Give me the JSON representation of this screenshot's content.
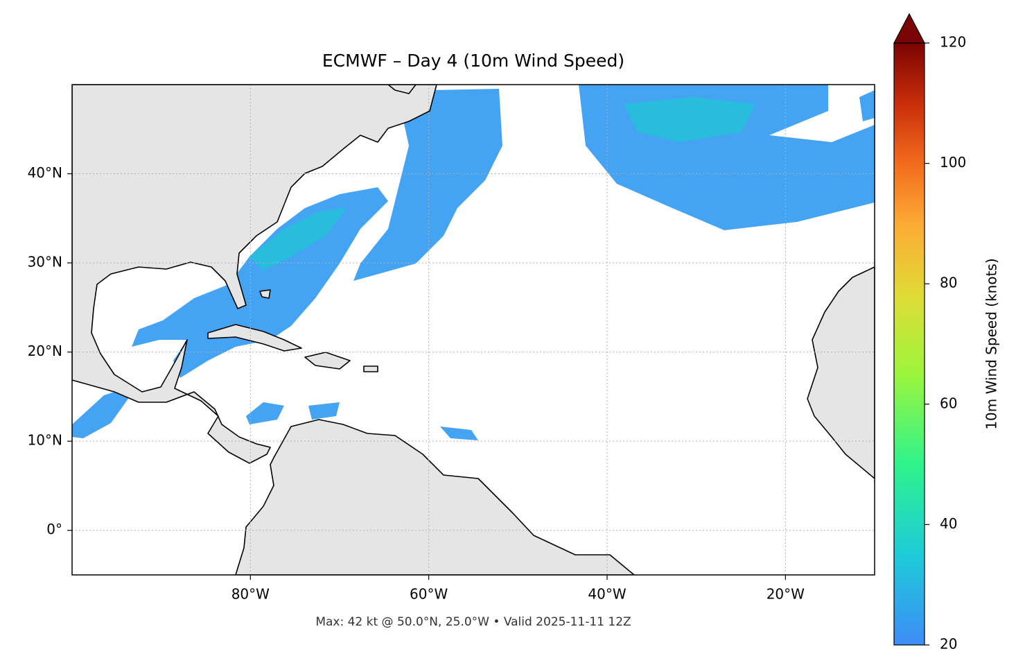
{
  "title": "ECMWF – Day 4 (10m Wind Speed)",
  "map": {
    "xlim": [
      -100,
      -10
    ],
    "ylim": [
      -5,
      50
    ],
    "xticks": [
      {
        "value": -80,
        "label": "80°W"
      },
      {
        "value": -60,
        "label": "60°W"
      },
      {
        "value": -40,
        "label": "40°W"
      },
      {
        "value": -20,
        "label": "20°W"
      }
    ],
    "yticks": [
      {
        "value": 0,
        "label": "0°"
      },
      {
        "value": 10,
        "label": "10°N"
      },
      {
        "value": 20,
        "label": "20°N"
      },
      {
        "value": 30,
        "label": "30°N"
      },
      {
        "value": 40,
        "label": "40°N"
      }
    ],
    "grid": true
  },
  "colorbar": {
    "label": "10m Wind Speed (knots)",
    "lim": [
      20,
      120
    ],
    "ticks": [
      20,
      40,
      60,
      80,
      100,
      120
    ]
  },
  "footer": "Max: 42 kt @ 50.0°N, 25.0°W • Valid 2025-11-11 12Z"
}
